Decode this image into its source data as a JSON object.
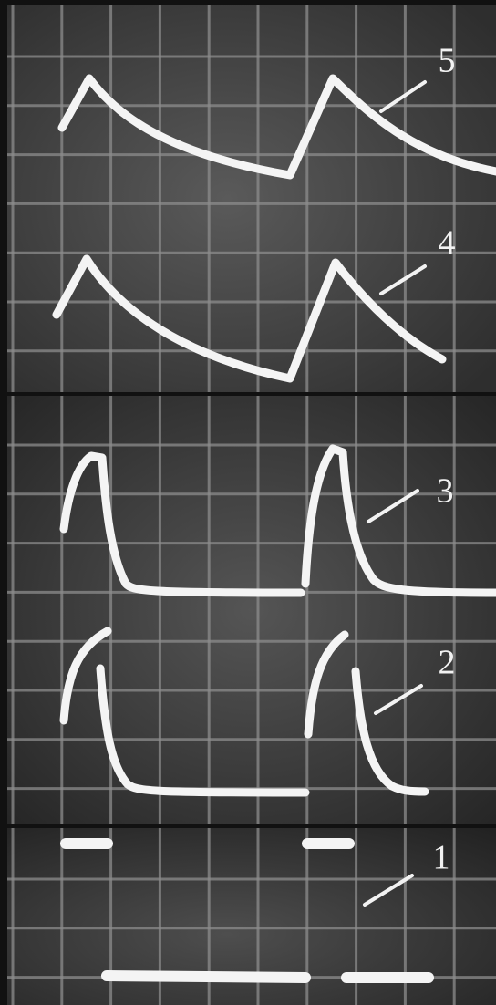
{
  "traces": [
    {
      "label": "5"
    },
    {
      "label": "4"
    },
    {
      "label": "3"
    },
    {
      "label": "2"
    },
    {
      "label": "1"
    }
  ]
}
